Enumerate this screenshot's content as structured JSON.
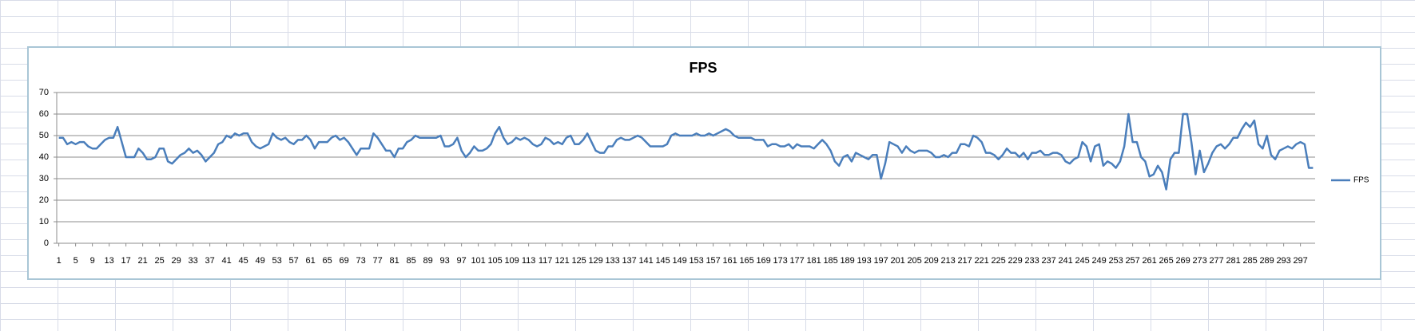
{
  "chart_data": {
    "type": "line",
    "title": "FPS",
    "x": [
      1,
      2,
      3,
      4,
      5,
      6,
      7,
      8,
      9,
      10,
      11,
      12,
      13,
      14,
      15,
      16,
      17,
      18,
      19,
      20,
      21,
      22,
      23,
      24,
      25,
      26,
      27,
      28,
      29,
      30,
      31,
      32,
      33,
      34,
      35,
      36,
      37,
      38,
      39,
      40,
      41,
      42,
      43,
      44,
      45,
      46,
      47,
      48,
      49,
      50,
      51,
      52,
      53,
      54,
      55,
      56,
      57,
      58,
      59,
      60,
      61,
      62,
      63,
      64,
      65,
      66,
      67,
      68,
      69,
      70,
      71,
      72,
      73,
      74,
      75,
      76,
      77,
      78,
      79,
      80,
      81,
      82,
      83,
      84,
      85,
      86,
      87,
      88,
      89,
      90,
      91,
      92,
      93,
      94,
      95,
      96,
      97,
      98,
      99,
      100,
      101,
      102,
      103,
      104,
      105,
      106,
      107,
      108,
      109,
      110,
      111,
      112,
      113,
      114,
      115,
      116,
      117,
      118,
      119,
      120,
      121,
      122,
      123,
      124,
      125,
      126,
      127,
      128,
      129,
      130,
      131,
      132,
      133,
      134,
      135,
      136,
      137,
      138,
      139,
      140,
      141,
      142,
      143,
      144,
      145,
      146,
      147,
      148,
      149,
      150,
      151,
      152,
      153,
      154,
      155,
      156,
      157,
      158,
      159,
      160,
      161,
      162,
      163,
      164,
      165,
      166,
      167,
      168,
      169,
      170,
      171,
      172,
      173,
      174,
      175,
      176,
      177,
      178,
      179,
      180,
      181,
      182,
      183,
      184,
      185,
      186,
      187,
      188,
      189,
      190,
      191,
      192,
      193,
      194,
      195,
      196,
      197,
      198,
      199,
      200,
      201,
      202,
      203,
      204,
      205,
      206,
      207,
      208,
      209,
      210,
      211,
      212,
      213,
      214,
      215,
      216,
      217,
      218,
      219,
      220,
      221,
      222,
      223,
      224,
      225,
      226,
      227,
      228,
      229,
      230,
      231,
      232,
      233,
      234,
      235,
      236,
      237,
      238,
      239,
      240,
      241,
      242,
      243,
      244,
      245,
      246,
      247,
      248,
      249,
      250,
      251,
      252,
      253,
      254,
      255,
      256,
      257,
      258,
      259,
      260,
      261,
      262,
      263,
      264,
      265,
      266,
      267,
      268,
      269,
      270,
      271,
      272,
      273,
      274,
      275,
      276,
      277,
      278,
      279,
      280,
      281,
      282,
      283,
      284,
      285,
      286,
      287,
      288,
      289,
      290,
      291,
      292,
      293,
      294,
      295,
      296,
      297,
      298,
      299,
      300
    ],
    "series": [
      {
        "name": "FPS",
        "color": "#4a7ebb",
        "values": [
          49,
          49,
          46,
          47,
          46,
          47,
          47,
          45,
          44,
          44,
          46,
          48,
          49,
          49,
          54,
          47,
          40,
          40,
          40,
          44,
          42,
          39,
          39,
          40,
          44,
          44,
          38,
          37,
          39,
          41,
          42,
          44,
          42,
          43,
          41,
          38,
          40,
          42,
          46,
          47,
          50,
          49,
          51,
          50,
          51,
          51,
          47,
          45,
          44,
          45,
          46,
          51,
          49,
          48,
          49,
          47,
          46,
          48,
          48,
          50,
          48,
          44,
          47,
          47,
          47,
          49,
          50,
          48,
          49,
          47,
          44,
          41,
          44,
          44,
          44,
          51,
          49,
          46,
          43,
          43,
          40,
          44,
          44,
          47,
          48,
          50,
          49,
          49,
          49,
          49,
          49,
          50,
          45,
          45,
          46,
          49,
          43,
          40,
          42,
          45,
          43,
          43,
          44,
          46,
          51,
          54,
          49,
          46,
          47,
          49,
          48,
          49,
          48,
          46,
          45,
          46,
          49,
          48,
          46,
          47,
          46,
          49,
          50,
          46,
          46,
          48,
          51,
          47,
          43,
          42,
          42,
          45,
          45,
          48,
          49,
          48,
          48,
          49,
          50,
          49,
          47,
          45,
          45,
          45,
          45,
          46,
          50,
          51,
          50,
          50,
          50,
          50,
          51,
          50,
          50,
          51,
          50,
          51,
          52,
          53,
          52,
          50,
          49,
          49,
          49,
          49,
          48,
          48,
          48,
          45,
          46,
          46,
          45,
          45,
          46,
          44,
          46,
          45,
          45,
          45,
          44,
          46,
          48,
          46,
          43,
          38,
          36,
          40,
          41,
          38,
          42,
          41,
          40,
          39,
          41,
          41,
          30,
          37,
          47,
          46,
          45,
          42,
          45,
          43,
          42,
          43,
          43,
          43,
          42,
          40,
          40,
          41,
          40,
          42,
          42,
          46,
          46,
          45,
          50,
          49,
          47,
          42,
          42,
          41,
          39,
          41,
          44,
          42,
          42,
          40,
          42,
          39,
          42,
          42,
          43,
          41,
          41,
          42,
          42,
          41,
          38,
          37,
          39,
          40,
          47,
          45,
          38,
          45,
          46,
          36,
          38,
          37,
          35,
          38,
          45,
          60,
          47,
          47,
          40,
          38,
          31,
          32,
          36,
          33,
          25,
          39,
          42,
          42,
          60,
          60,
          47,
          32,
          43,
          33,
          37,
          42,
          45,
          46,
          44,
          46,
          49,
          49,
          53,
          56,
          54,
          57,
          46,
          44,
          50,
          41,
          39,
          43,
          44,
          45,
          44,
          46,
          47,
          46,
          35,
          35
        ]
      }
    ],
    "xlim": [
      0.5,
      300.5
    ],
    "xticks": [
      1,
      5,
      9,
      13,
      17,
      21,
      25,
      29,
      33,
      37,
      41,
      45,
      49,
      53,
      57,
      61,
      65,
      69,
      73,
      77,
      81,
      85,
      89,
      93,
      97,
      101,
      105,
      109,
      113,
      117,
      121,
      125,
      129,
      133,
      137,
      141,
      145,
      149,
      153,
      157,
      161,
      165,
      169,
      173,
      177,
      181,
      185,
      189,
      193,
      197,
      201,
      205,
      209,
      213,
      217,
      221,
      225,
      229,
      233,
      237,
      241,
      245,
      249,
      253,
      257,
      261,
      265,
      269,
      273,
      277,
      281,
      285,
      289,
      293,
      297
    ],
    "ylim": [
      0,
      70
    ],
    "yticks": [
      0,
      10,
      20,
      30,
      40,
      50,
      60,
      70
    ],
    "grid": true,
    "legend": "right"
  }
}
